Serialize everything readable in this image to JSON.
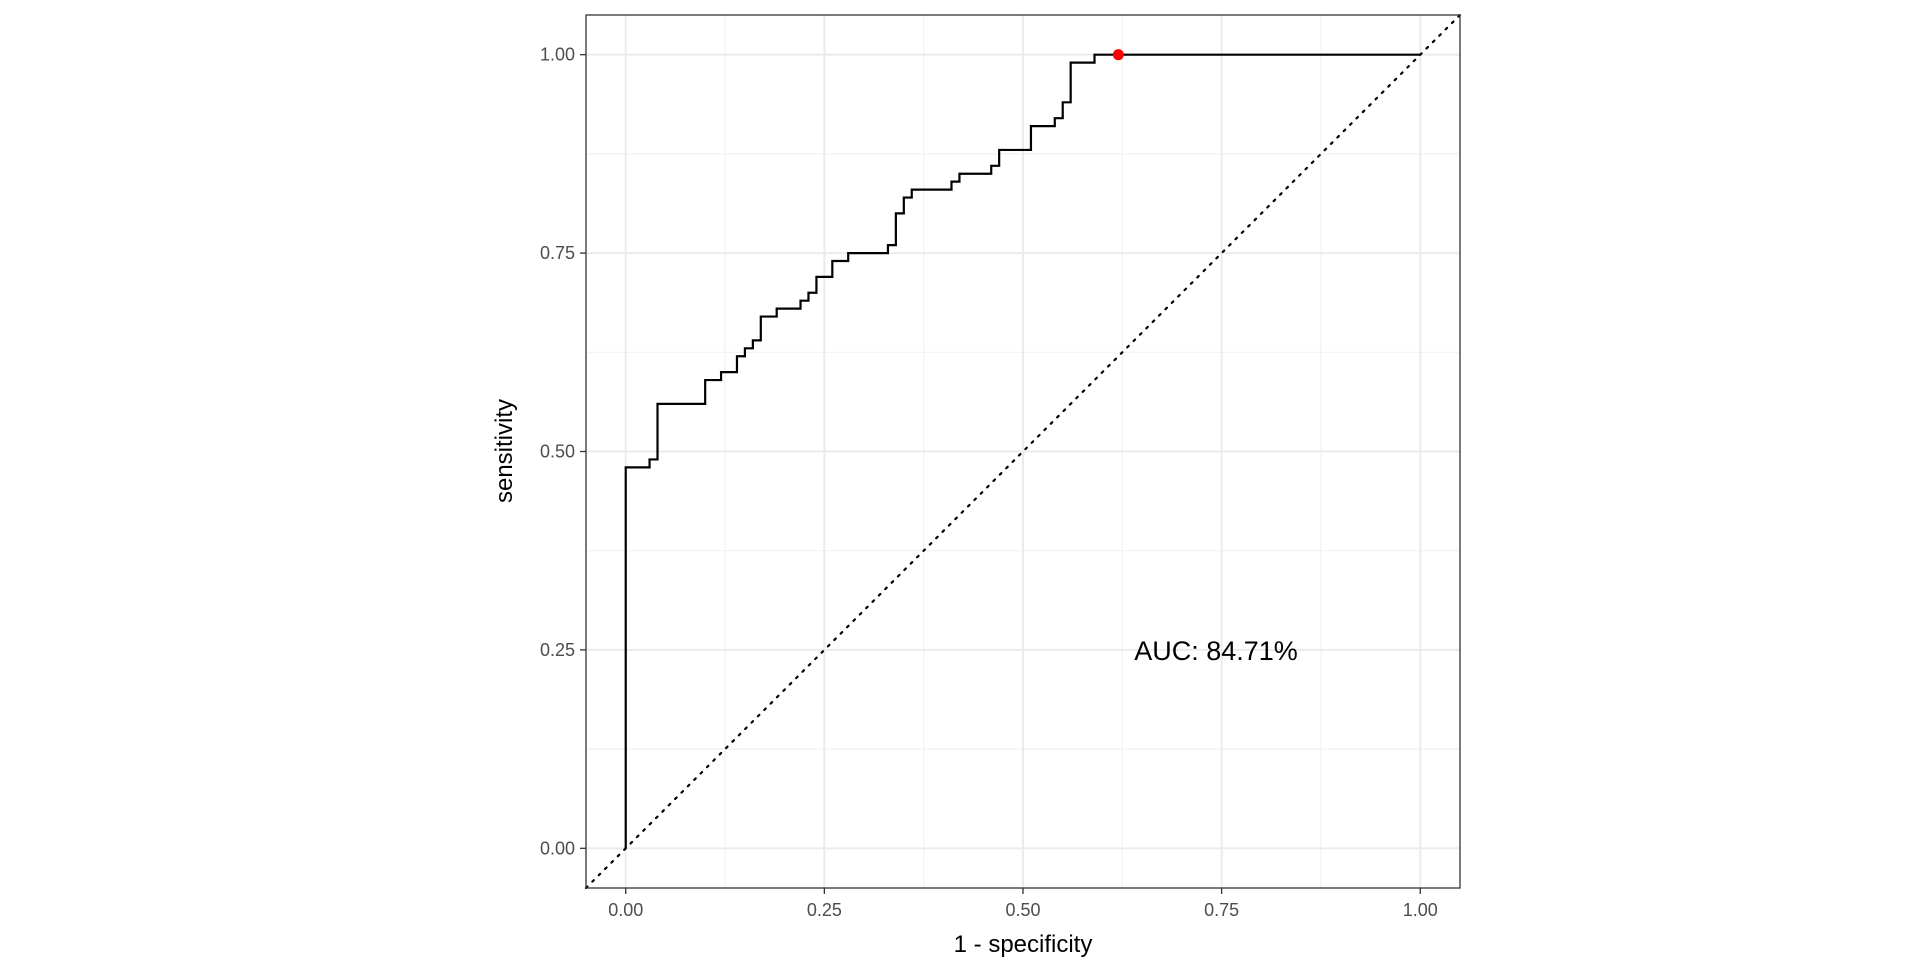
{
  "chart_data": {
    "type": "line",
    "title": "",
    "xlabel": "1 - specificity",
    "ylabel": "sensitivity",
    "xlim": [
      -0.05,
      1.05
    ],
    "ylim": [
      -0.05,
      1.05
    ],
    "x_ticks": [
      0,
      0.25,
      0.5,
      0.75,
      1
    ],
    "x_tick_labels": [
      "0.00",
      "0.25",
      "0.50",
      "0.75",
      "1.00"
    ],
    "y_ticks": [
      0,
      0.25,
      0.5,
      0.75,
      1
    ],
    "y_tick_labels": [
      "0.00",
      "0.25",
      "0.50",
      "0.75",
      "1.00"
    ],
    "grid": true,
    "series": [
      {
        "style": "step",
        "color": "#000000",
        "x": [
          0,
          0,
          0.03,
          0.03,
          0.04,
          0.04,
          0.1,
          0.1,
          0.12,
          0.12,
          0.14,
          0.14,
          0.15,
          0.15,
          0.16,
          0.16,
          0.17,
          0.17,
          0.19,
          0.19,
          0.22,
          0.22,
          0.23,
          0.23,
          0.24,
          0.24,
          0.26,
          0.26,
          0.28,
          0.28,
          0.33,
          0.33,
          0.34,
          0.34,
          0.35,
          0.35,
          0.36,
          0.36,
          0.41,
          0.41,
          0.42,
          0.42,
          0.46,
          0.46,
          0.47,
          0.47,
          0.51,
          0.51,
          0.54,
          0.54,
          0.55,
          0.55,
          0.56,
          0.56,
          0.59,
          0.59,
          0.62,
          1.0
        ],
        "y": [
          0,
          0.48,
          0.48,
          0.49,
          0.49,
          0.56,
          0.56,
          0.59,
          0.59,
          0.6,
          0.6,
          0.62,
          0.62,
          0.63,
          0.63,
          0.64,
          0.64,
          0.67,
          0.67,
          0.68,
          0.68,
          0.69,
          0.69,
          0.7,
          0.7,
          0.72,
          0.72,
          0.74,
          0.74,
          0.75,
          0.75,
          0.76,
          0.76,
          0.8,
          0.8,
          0.82,
          0.82,
          0.83,
          0.83,
          0.84,
          0.84,
          0.85,
          0.85,
          0.86,
          0.86,
          0.88,
          0.88,
          0.91,
          0.91,
          0.92,
          0.92,
          0.94,
          0.94,
          0.99,
          0.99,
          1.0,
          1.0,
          1.0
        ]
      },
      {
        "style": "dotted",
        "color": "#000000",
        "x": [
          -0.05,
          1.05
        ],
        "y": [
          -0.05,
          1.05
        ]
      }
    ],
    "highlight_point": {
      "x": 0.62,
      "y": 1.0,
      "color": "#ff0000"
    },
    "annotations": [
      {
        "text": "AUC: 84.71%",
        "x": 0.64,
        "y": 0.25
      }
    ]
  }
}
